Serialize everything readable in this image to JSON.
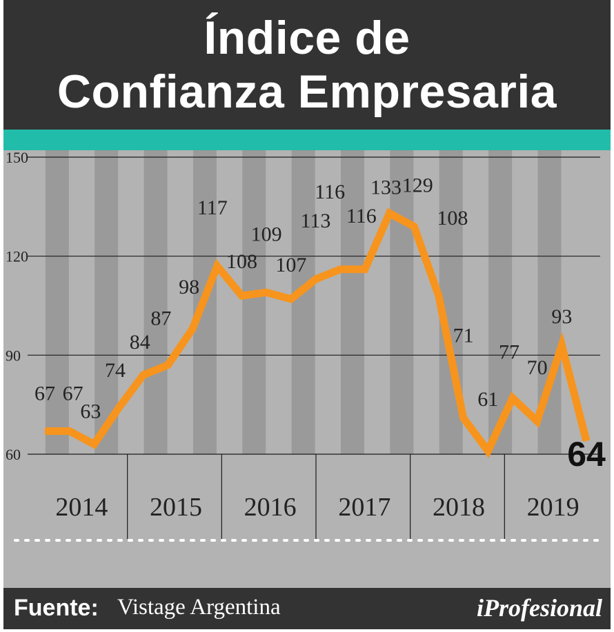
{
  "title": {
    "line1": "Índice de",
    "line2": "Confianza Empresaria"
  },
  "footer": {
    "source_label": "Fuente:",
    "source_value": "Vistage Argentina",
    "brand": "iProfesional"
  },
  "colors": {
    "header_bg": "#333333",
    "teal": "#22bcab",
    "panel_bg": "#b3b3b3",
    "stripe": "#9a9a9a",
    "line": "#f7941d"
  },
  "chart_data": {
    "type": "line",
    "title": "Índice de Confianza Empresaria",
    "xlabel": "",
    "ylabel": "",
    "ylim": [
      60,
      150
    ],
    "yticks": [
      60,
      90,
      120,
      150
    ],
    "grid": true,
    "years": [
      "2014",
      "2015",
      "2016",
      "2017",
      "2018",
      "2019"
    ],
    "series": [
      {
        "values": [
          67,
          67,
          63,
          74,
          84,
          87,
          98,
          117,
          108,
          109,
          107,
          113,
          116,
          116,
          133,
          129,
          108,
          71,
          61,
          77,
          70,
          93,
          64
        ],
        "labels": [
          "67",
          "67",
          "63",
          "74",
          "84",
          "87",
          "98",
          "117",
          "108",
          "109",
          "107",
          "113",
          "116",
          "116",
          "133",
          "129",
          "108",
          "71",
          "61",
          "77",
          "70",
          "93",
          "64"
        ]
      }
    ]
  }
}
